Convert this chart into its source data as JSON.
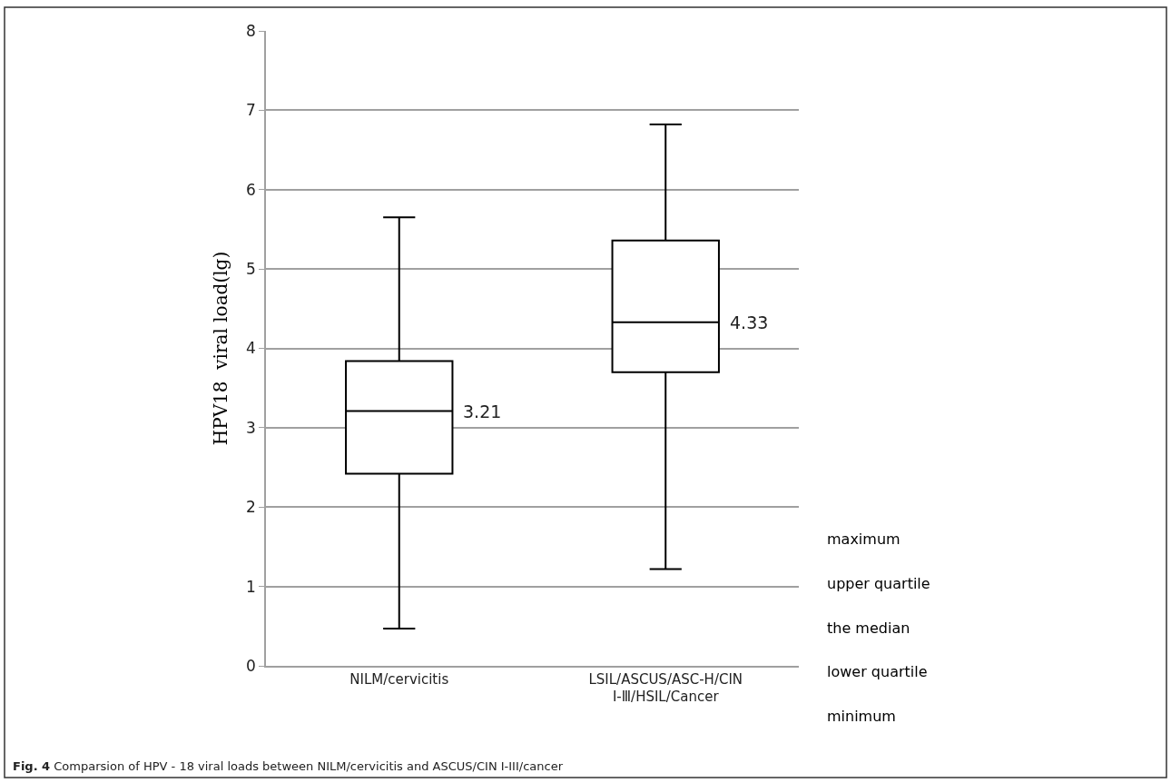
{
  "chart_data": {
    "type": "box",
    "ylabel": "HPV18  viral load(lg)",
    "categories": [
      "NILM/cervicitis",
      "LSIL/ASCUS/ASC-H/CIN Ⅰ-Ⅲ/HSIL/Cancer"
    ],
    "boxes": [
      {
        "low": 0.47,
        "q1": 2.42,
        "median": 3.21,
        "q3": 3.84,
        "high": 5.65
      },
      {
        "low": 1.22,
        "q1": 3.7,
        "median": 4.33,
        "q3": 5.36,
        "high": 6.82
      }
    ],
    "color": "#000000",
    "ylim": [
      0,
      8
    ],
    "yticks": [
      0,
      1,
      2,
      3,
      4,
      5,
      6,
      7,
      8
    ],
    "grid": "y",
    "annotations": [
      "3.21",
      "4.33",
      "maximum",
      "upper quartile",
      "the median",
      "lower quartile",
      "minimum",
      "Fig. 4 Comparsion of HPV - 18 viral loads between NILM/cervicitis and ASCUS/CIN I-III/cancer"
    ]
  }
}
